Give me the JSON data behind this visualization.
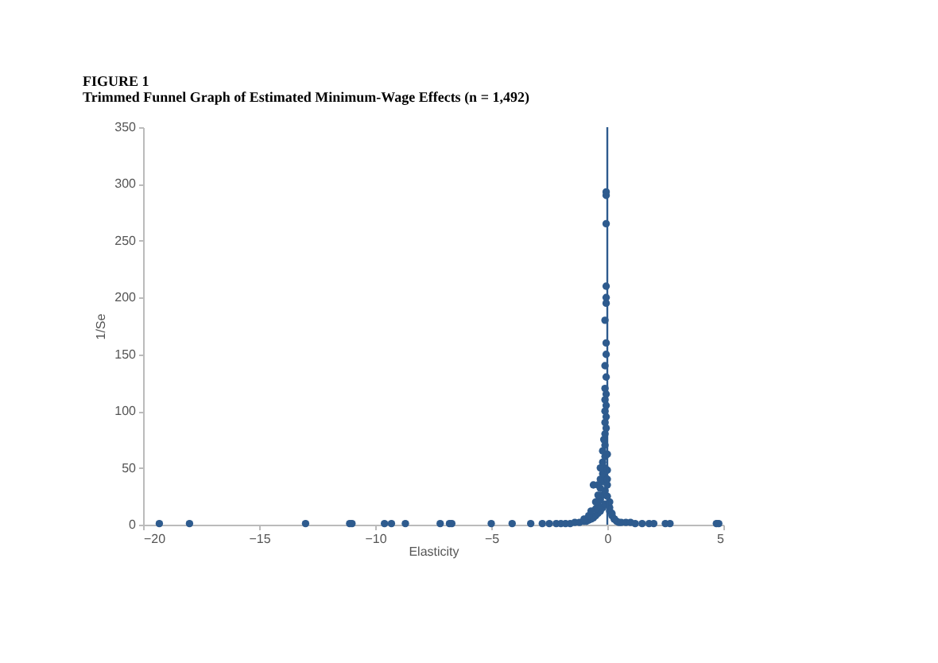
{
  "chart_data": {
    "type": "scatter",
    "title": "FIGURE 1",
    "subtitle": "Trimmed Funnel Graph of Estimated Minimum-Wage Effects (n = 1,492)",
    "xlabel": "Elasticity",
    "ylabel": "1/Se",
    "xlim": [
      -20,
      5
    ],
    "xticks": [
      -20,
      -15,
      -10,
      -5,
      0,
      5
    ],
    "ylim": [
      0,
      350
    ],
    "yticks": [
      0,
      50,
      100,
      150,
      200,
      250,
      300,
      350
    ],
    "grid": false,
    "marker": "circle",
    "ref_lines": [
      {
        "axis": "x",
        "value": 0,
        "color": "#2e5b8e"
      }
    ],
    "series": [
      {
        "color": "#2e5b8e",
        "x": [
          -19.3,
          -18,
          -13,
          -11.1,
          -11,
          -9.6,
          -9.3,
          -8.7,
          -7.2,
          -6.8,
          -6.7,
          -5,
          -4.1,
          -3.3,
          -2.8,
          -2.5,
          -2.2,
          -2.0,
          -1.8,
          -1.6,
          -1.4,
          -1.2,
          -1.0,
          -0.9,
          -0.8,
          -0.7,
          -0.6,
          -0.5,
          -0.4,
          -0.3,
          -0.2,
          -0.1,
          0.1,
          0.2,
          0.3,
          0.4,
          0.5,
          0.6,
          0.8,
          1.0,
          1.2,
          1.5,
          1.8,
          2.0,
          2.5,
          2.7,
          4.7,
          4.8,
          -1.0,
          -0.8,
          -0.5,
          -0.4,
          -0.3,
          -0.2,
          -0.1,
          0.0,
          0.1,
          0.2,
          0.3,
          -0.7,
          -0.5,
          -0.4,
          -0.3,
          -0.2,
          -0.1,
          0.0,
          0.1,
          -0.4,
          -0.3,
          -0.2,
          -0.1,
          0.0,
          -0.3,
          -0.2,
          -0.1,
          0.0,
          -0.6,
          -0.2,
          -0.1,
          0.0,
          -0.15,
          -0.1,
          -0.05,
          -0.1,
          -0.05,
          -0.1,
          -0.05,
          -0.1,
          -0.05,
          -0.1,
          -0.05,
          -0.1,
          -0.05,
          -0.05,
          -0.1,
          -0.05,
          -0.05,
          -0.05,
          -0.05,
          -0.05,
          -0.05
        ],
        "values": [
          1,
          1,
          1,
          1,
          1,
          1,
          1,
          1,
          1,
          1,
          1,
          1,
          1,
          1,
          1,
          1,
          1,
          1,
          1,
          1,
          2,
          2,
          3,
          3,
          4,
          5,
          6,
          8,
          10,
          12,
          15,
          18,
          12,
          8,
          5,
          3,
          2,
          2,
          2,
          2,
          1,
          1,
          1,
          1,
          1,
          1,
          1,
          1,
          5,
          8,
          14,
          18,
          22,
          26,
          30,
          25,
          15,
          10,
          5,
          12,
          20,
          26,
          32,
          38,
          42,
          35,
          20,
          35,
          40,
          45,
          50,
          40,
          50,
          55,
          60,
          48,
          35,
          65,
          70,
          62,
          75,
          80,
          85,
          90,
          95,
          100,
          105,
          110,
          115,
          120,
          130,
          140,
          150,
          160,
          180,
          195,
          200,
          210,
          265,
          290,
          293
        ]
      }
    ]
  }
}
